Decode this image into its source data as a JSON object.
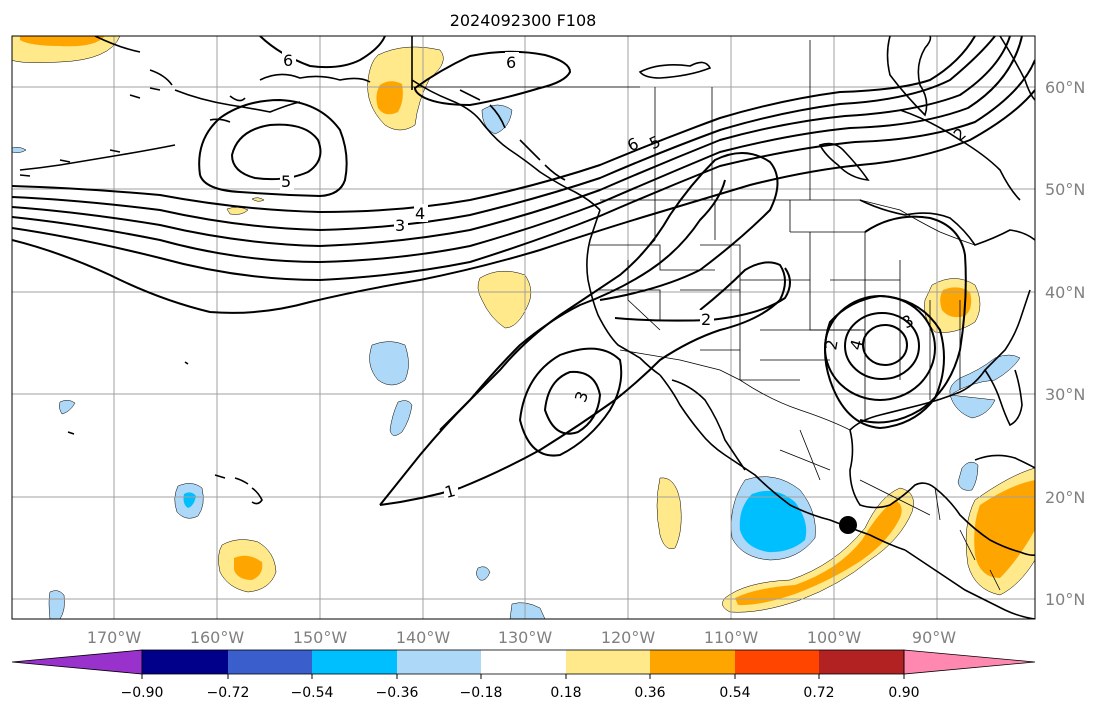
{
  "title": "2024092300 F108",
  "longitude_labels": [
    "170°W",
    "160°W",
    "150°W",
    "140°W",
    "130°W",
    "120°W",
    "110°W",
    "100°W",
    "90°W"
  ],
  "latitude_labels": [
    "60°N",
    "50°N",
    "40°N",
    "30°N",
    "20°N",
    "10°N"
  ],
  "colorbar": {
    "tick_labels": [
      "−0.90",
      "−0.72",
      "−0.54",
      "−0.36",
      "−0.18",
      "0.18",
      "0.36",
      "0.54",
      "0.72",
      "0.90"
    ],
    "colors": [
      "#9932cc",
      "#00008b",
      "#3a5fcd",
      "#00bfff",
      "#add8f7",
      "#ffffff",
      "#ffe98a",
      "#ffa500",
      "#ff4500",
      "#b22222",
      "#ff88b0"
    ]
  },
  "contour_labels": [
    "6",
    "6",
    "5",
    "4",
    "3",
    "6",
    "5",
    "2",
    "3",
    "2",
    "3",
    "4",
    "1",
    "2"
  ],
  "marker": {
    "type": "dot",
    "color": "#000000"
  }
}
